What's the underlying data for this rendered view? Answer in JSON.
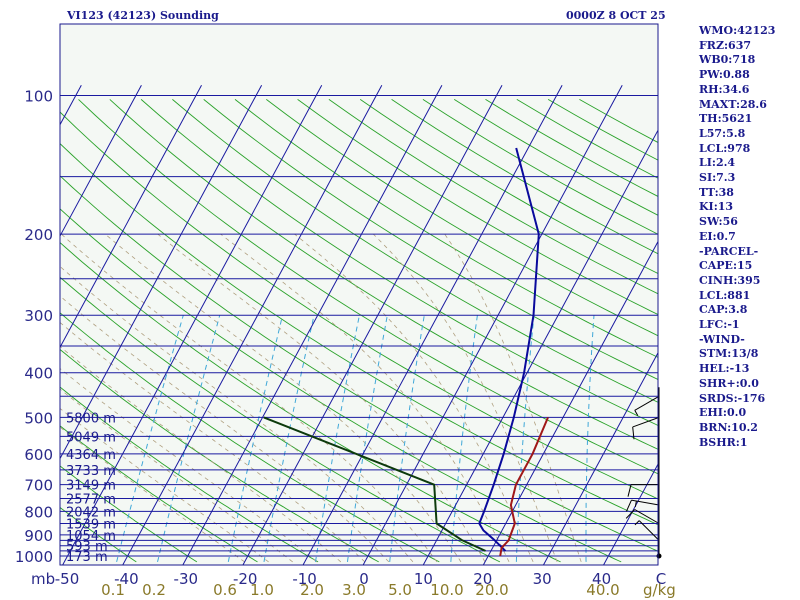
{
  "header": {
    "title": "VI123 (42123) Sounding",
    "datetime": "0000Z  8 OCT 25"
  },
  "indices": [
    "WMO:42123",
    "FRZ:637",
    "WB0:718",
    "PW:0.88",
    "RH:34.6",
    "MAXT:28.6",
    "TH:5621",
    "L57:5.8",
    "LCL:978",
    "LI:2.4",
    "SI:7.3",
    "TT:38",
    "KI:13",
    "SW:56",
    "EI:0.7",
    "-PARCEL-",
    "CAPE:15",
    "CINH:395",
    "LCL:881",
    "CAP:3.8",
    "LFC:-1",
    "-WIND-",
    "STM:13/8",
    "HEL:-13",
    "SHR+:0.0",
    "SRDS:-176",
    "EHI:0.0",
    "BRN:10.2",
    "BSHR:1"
  ],
  "colors": {
    "background": "#ffffff",
    "plot_background": "#f4f8f4",
    "isobar": "#1a1aa0",
    "isotherm": "#1a1aa0",
    "dry_adiabat": "#2aa22a",
    "moist_adiabat": "#b0a080",
    "mixing_ratio": "#40a8d8",
    "temperature": "#a01818",
    "dewpoint": "#0a0a9c",
    "parcel": "#0c3a0c",
    "tick_labels": "#2a2a8a",
    "mixing_labels": "#8a7a2a",
    "wind": "#000000"
  },
  "chart_data": {
    "type": "skew-t log-p sounding",
    "title": "",
    "xlabel": "",
    "ylabel": "mb",
    "x_unit_label": "C",
    "mixing_ratio_unit_label": "g/kg",
    "pressure_ticks": [
      100,
      200,
      300,
      400,
      500,
      600,
      700,
      800,
      900,
      1000
    ],
    "isobars_hpa": [
      100,
      150,
      200,
      250,
      300,
      350,
      400,
      450,
      500,
      550,
      600,
      650,
      700,
      750,
      800,
      850,
      900,
      925,
      950,
      975,
      1000
    ],
    "temperature_ticks": [
      -50,
      -40,
      -30,
      -20,
      -10,
      0,
      10,
      20,
      30,
      40,
      "C"
    ],
    "mixing_ratio_values": [
      0.1,
      0.2,
      0.6,
      1.0,
      2.0,
      3.0,
      5.0,
      10.0,
      20.0,
      40.0
    ],
    "mixing_ratio_labels": [
      "0.1",
      "0.2",
      "0.6",
      "1.0",
      "2.0",
      "3.0",
      "5.0",
      "10.0",
      "20.0",
      "40.0"
    ],
    "height_labels": [
      {
        "p": 500,
        "text": "5800 m"
      },
      {
        "p": 550,
        "text": "5049 m"
      },
      {
        "p": 600,
        "text": "4364 m"
      },
      {
        "p": 650,
        "text": "3733 m"
      },
      {
        "p": 700,
        "text": "3149 m"
      },
      {
        "p": 750,
        "text": "2577 m"
      },
      {
        "p": 800,
        "text": "2042 m"
      },
      {
        "p": 850,
        "text": "1539 m"
      },
      {
        "p": 900,
        "text": "1054 m"
      },
      {
        "p": 950,
        "text": "593 m"
      },
      {
        "p": 1000,
        "text": "173 m"
      }
    ],
    "series": [
      {
        "key": "temperature",
        "points": [
          {
            "p": 500,
            "t": 17.5
          },
          {
            "p": 600,
            "t": 18.2
          },
          {
            "p": 700,
            "t": 18.2
          },
          {
            "p": 775,
            "t": 19.2
          },
          {
            "p": 850,
            "t": 21.5
          },
          {
            "p": 925,
            "t": 22.0
          },
          {
            "p": 960,
            "t": 21.5
          },
          {
            "p": 1000,
            "t": 22.0
          }
        ]
      },
      {
        "key": "dewpoint",
        "points": [
          {
            "p": 130,
            "t": -12
          },
          {
            "p": 200,
            "t": -0.5
          },
          {
            "p": 300,
            "t": 5.9
          },
          {
            "p": 400,
            "t": 9.5
          },
          {
            "p": 500,
            "t": 11.8
          },
          {
            "p": 600,
            "t": 13.4
          },
          {
            "p": 700,
            "t": 14.5
          },
          {
            "p": 800,
            "t": 15.3
          },
          {
            "p": 850,
            "t": 15.6
          },
          {
            "p": 880,
            "t": 16.9
          },
          {
            "p": 925,
            "t": 19.7
          },
          {
            "p": 975,
            "t": 22.4
          }
        ]
      },
      {
        "key": "parcel",
        "points": [
          {
            "p": 500,
            "t": -29.8
          },
          {
            "p": 700,
            "t": 4.6
          },
          {
            "p": 850,
            "t": 8.5
          },
          {
            "p": 925,
            "t": 14.3
          },
          {
            "p": 975,
            "t": 19.1
          }
        ]
      }
    ],
    "wind_barbs": [
      {
        "p": 1000,
        "dir": 0,
        "spd": 0
      },
      {
        "p": 925,
        "dir": 315,
        "spd": 5
      },
      {
        "p": 850,
        "dir": 300,
        "spd": 10
      },
      {
        "p": 775,
        "dir": 280,
        "spd": 15
      },
      {
        "p": 700,
        "dir": 270,
        "spd": 10
      },
      {
        "p": 500,
        "dir": 250,
        "spd": 10
      },
      {
        "p": 450,
        "dir": 240,
        "spd": 5
      }
    ],
    "xlim": [
      -50,
      50
    ],
    "ylim": [
      1025,
      100
    ],
    "grid": true
  }
}
